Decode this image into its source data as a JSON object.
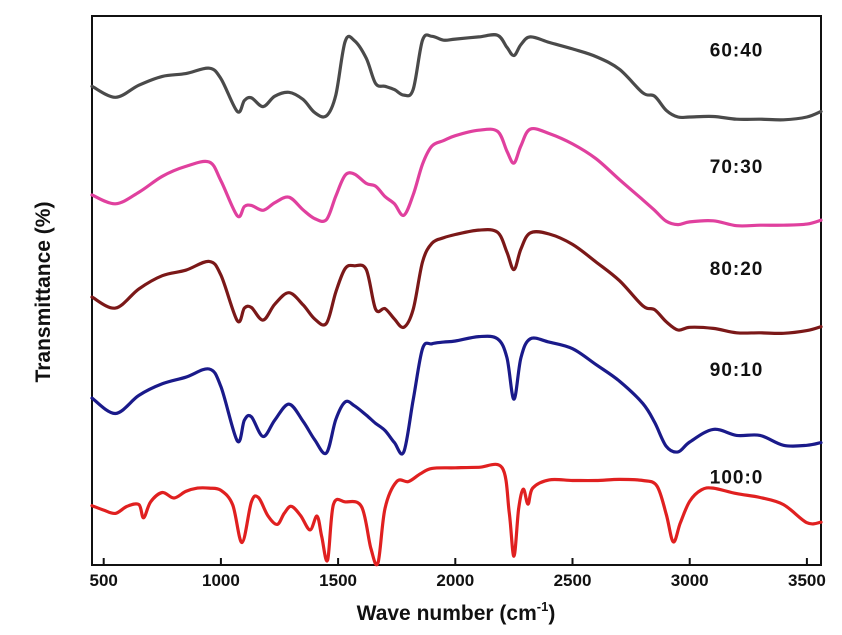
{
  "chart_data": {
    "type": "line",
    "xlabel": "Wave number (cm",
    "xlabel_sup": "-1",
    "xlabel_end": ")",
    "ylabel": "Transmittance (%)",
    "xlim": [
      450,
      3560
    ],
    "ylim": [
      0,
      100
    ],
    "x_ticks": [
      500,
      1000,
      1500,
      2000,
      2500,
      3000,
      3500
    ],
    "x_tick_labels": [
      "500",
      "1000",
      "1500",
      "2000",
      "2500",
      "3000",
      "3500"
    ],
    "grid": false,
    "series": [
      {
        "name": "60:40",
        "color": "#4a4a4a",
        "points": [
          [
            450,
            87.2
          ],
          [
            550,
            85.2
          ],
          [
            650,
            87.4
          ],
          [
            750,
            89.0
          ],
          [
            850,
            89.5
          ],
          [
            950,
            90.5
          ],
          [
            1000,
            88.6
          ],
          [
            1070,
            82.6
          ],
          [
            1100,
            84.6
          ],
          [
            1130,
            85.1
          ],
          [
            1180,
            83.5
          ],
          [
            1230,
            85.4
          ],
          [
            1290,
            86.1
          ],
          [
            1350,
            84.8
          ],
          [
            1400,
            82.4
          ],
          [
            1450,
            81.8
          ],
          [
            1490,
            85.6
          ],
          [
            1530,
            95.4
          ],
          [
            1570,
            95.5
          ],
          [
            1620,
            92.3
          ],
          [
            1660,
            87.7
          ],
          [
            1700,
            87.2
          ],
          [
            1740,
            86.6
          ],
          [
            1780,
            85.6
          ],
          [
            1820,
            86.6
          ],
          [
            1860,
            95.6
          ],
          [
            1900,
            96.3
          ],
          [
            1950,
            95.6
          ],
          [
            2000,
            95.8
          ],
          [
            2100,
            96.2
          ],
          [
            2180,
            96.5
          ],
          [
            2220,
            94.3
          ],
          [
            2250,
            92.8
          ],
          [
            2280,
            94.8
          ],
          [
            2320,
            96.2
          ],
          [
            2400,
            95.2
          ],
          [
            2500,
            94.0
          ],
          [
            2600,
            92.6
          ],
          [
            2700,
            90.3
          ],
          [
            2800,
            86.0
          ],
          [
            2850,
            85.4
          ],
          [
            2900,
            82.8
          ],
          [
            2950,
            81.6
          ],
          [
            3000,
            81.6
          ],
          [
            3100,
            81.7
          ],
          [
            3200,
            81.2
          ],
          [
            3300,
            81.2
          ],
          [
            3400,
            81.1
          ],
          [
            3500,
            81.6
          ],
          [
            3560,
            82.6
          ]
        ]
      },
      {
        "name": "70:30",
        "color": "#e0409e",
        "points": [
          [
            450,
            67.4
          ],
          [
            550,
            65.8
          ],
          [
            650,
            67.9
          ],
          [
            750,
            70.8
          ],
          [
            850,
            72.6
          ],
          [
            950,
            73.4
          ],
          [
            1000,
            70.0
          ],
          [
            1070,
            63.6
          ],
          [
            1100,
            65.3
          ],
          [
            1130,
            65.5
          ],
          [
            1180,
            64.6
          ],
          [
            1230,
            66.0
          ],
          [
            1290,
            67.0
          ],
          [
            1350,
            64.7
          ],
          [
            1400,
            63.1
          ],
          [
            1450,
            62.9
          ],
          [
            1490,
            67.2
          ],
          [
            1530,
            71.0
          ],
          [
            1570,
            71.2
          ],
          [
            1620,
            69.5
          ],
          [
            1660,
            69.0
          ],
          [
            1700,
            67.1
          ],
          [
            1740,
            65.8
          ],
          [
            1780,
            63.7
          ],
          [
            1820,
            67.4
          ],
          [
            1860,
            73.0
          ],
          [
            1900,
            76.3
          ],
          [
            1950,
            77.3
          ],
          [
            2000,
            78.2
          ],
          [
            2100,
            79.2
          ],
          [
            2180,
            79.0
          ],
          [
            2220,
            75.4
          ],
          [
            2250,
            73.2
          ],
          [
            2280,
            76.4
          ],
          [
            2320,
            79.4
          ],
          [
            2400,
            78.6
          ],
          [
            2500,
            76.7
          ],
          [
            2600,
            74.0
          ],
          [
            2700,
            70.2
          ],
          [
            2800,
            66.5
          ],
          [
            2850,
            64.6
          ],
          [
            2900,
            62.6
          ],
          [
            2950,
            62.0
          ],
          [
            3000,
            62.5
          ],
          [
            3100,
            62.7
          ],
          [
            3200,
            61.8
          ],
          [
            3300,
            61.9
          ],
          [
            3400,
            61.9
          ],
          [
            3500,
            62.1
          ],
          [
            3560,
            62.8
          ]
        ]
      },
      {
        "name": "80:20",
        "color": "#7b1818",
        "points": [
          [
            450,
            48.8
          ],
          [
            550,
            46.8
          ],
          [
            650,
            50.3
          ],
          [
            750,
            52.7
          ],
          [
            850,
            53.7
          ],
          [
            950,
            55.3
          ],
          [
            1000,
            52.8
          ],
          [
            1070,
            44.5
          ],
          [
            1100,
            46.8
          ],
          [
            1130,
            46.9
          ],
          [
            1180,
            44.6
          ],
          [
            1230,
            47.5
          ],
          [
            1290,
            49.6
          ],
          [
            1350,
            47.4
          ],
          [
            1400,
            44.8
          ],
          [
            1450,
            44.0
          ],
          [
            1490,
            49.7
          ],
          [
            1530,
            54.0
          ],
          [
            1570,
            54.5
          ],
          [
            1620,
            53.8
          ],
          [
            1660,
            46.6
          ],
          [
            1700,
            46.7
          ],
          [
            1740,
            44.8
          ],
          [
            1780,
            43.3
          ],
          [
            1820,
            46.5
          ],
          [
            1860,
            55.2
          ],
          [
            1900,
            58.6
          ],
          [
            1950,
            59.6
          ],
          [
            2000,
            60.2
          ],
          [
            2100,
            61.0
          ],
          [
            2180,
            60.6
          ],
          [
            2220,
            57.0
          ],
          [
            2250,
            53.8
          ],
          [
            2280,
            57.6
          ],
          [
            2320,
            60.5
          ],
          [
            2400,
            60.3
          ],
          [
            2500,
            58.4
          ],
          [
            2600,
            55.2
          ],
          [
            2700,
            51.8
          ],
          [
            2800,
            47.2
          ],
          [
            2850,
            46.5
          ],
          [
            2900,
            44.3
          ],
          [
            2950,
            42.8
          ],
          [
            3000,
            43.3
          ],
          [
            3100,
            43.1
          ],
          [
            3200,
            42.3
          ],
          [
            3300,
            42.3
          ],
          [
            3400,
            42.2
          ],
          [
            3500,
            42.7
          ],
          [
            3560,
            43.4
          ]
        ]
      },
      {
        "name": "90:10",
        "color": "#1a1a8a",
        "points": [
          [
            450,
            30.4
          ],
          [
            550,
            27.6
          ],
          [
            650,
            30.9
          ],
          [
            750,
            33.0
          ],
          [
            850,
            34.2
          ],
          [
            950,
            35.7
          ],
          [
            1000,
            32.5
          ],
          [
            1070,
            22.6
          ],
          [
            1100,
            26.4
          ],
          [
            1130,
            27.0
          ],
          [
            1180,
            23.4
          ],
          [
            1230,
            26.4
          ],
          [
            1290,
            29.3
          ],
          [
            1350,
            26.2
          ],
          [
            1400,
            22.8
          ],
          [
            1450,
            20.4
          ],
          [
            1490,
            26.5
          ],
          [
            1530,
            29.7
          ],
          [
            1570,
            29.0
          ],
          [
            1620,
            27.3
          ],
          [
            1660,
            25.8
          ],
          [
            1700,
            24.5
          ],
          [
            1740,
            22.3
          ],
          [
            1780,
            20.6
          ],
          [
            1820,
            30.0
          ],
          [
            1860,
            39.4
          ],
          [
            1900,
            40.3
          ],
          [
            1950,
            40.6
          ],
          [
            2000,
            40.8
          ],
          [
            2100,
            41.6
          ],
          [
            2180,
            41.2
          ],
          [
            2220,
            37.8
          ],
          [
            2250,
            30.2
          ],
          [
            2280,
            37.8
          ],
          [
            2320,
            41.2
          ],
          [
            2400,
            40.6
          ],
          [
            2500,
            39.4
          ],
          [
            2600,
            36.5
          ],
          [
            2700,
            33.5
          ],
          [
            2800,
            29.4
          ],
          [
            2850,
            26.0
          ],
          [
            2900,
            21.6
          ],
          [
            2950,
            20.6
          ],
          [
            3000,
            22.4
          ],
          [
            3100,
            24.7
          ],
          [
            3200,
            23.6
          ],
          [
            3300,
            23.6
          ],
          [
            3400,
            21.8
          ],
          [
            3500,
            21.8
          ],
          [
            3560,
            22.3
          ]
        ]
      },
      {
        "name": "100:0",
        "color": "#e02020",
        "points": [
          [
            450,
            10.8
          ],
          [
            500,
            10.0
          ],
          [
            550,
            9.4
          ],
          [
            600,
            10.7
          ],
          [
            650,
            11.0
          ],
          [
            670,
            8.6
          ],
          [
            700,
            11.5
          ],
          [
            750,
            13.2
          ],
          [
            800,
            12.2
          ],
          [
            850,
            13.4
          ],
          [
            900,
            14.0
          ],
          [
            950,
            14.0
          ],
          [
            1000,
            13.6
          ],
          [
            1050,
            11.0
          ],
          [
            1090,
            4.1
          ],
          [
            1130,
            11.5
          ],
          [
            1160,
            12.3
          ],
          [
            1200,
            9.0
          ],
          [
            1240,
            7.4
          ],
          [
            1270,
            9.4
          ],
          [
            1300,
            10.7
          ],
          [
            1340,
            9.0
          ],
          [
            1380,
            6.4
          ],
          [
            1410,
            8.9
          ],
          [
            1430,
            5.2
          ],
          [
            1455,
            0.9
          ],
          [
            1480,
            11.0
          ],
          [
            1530,
            11.5
          ],
          [
            1600,
            10.6
          ],
          [
            1640,
            3.0
          ],
          [
            1670,
            0.4
          ],
          [
            1700,
            10.3
          ],
          [
            1750,
            15.2
          ],
          [
            1800,
            15.2
          ],
          [
            1850,
            16.6
          ],
          [
            1900,
            17.6
          ],
          [
            2000,
            17.7
          ],
          [
            2100,
            17.8
          ],
          [
            2200,
            17.7
          ],
          [
            2230,
            9.6
          ],
          [
            2250,
            1.6
          ],
          [
            2270,
            10.2
          ],
          [
            2290,
            13.8
          ],
          [
            2310,
            11.1
          ],
          [
            2330,
            14.0
          ],
          [
            2400,
            15.5
          ],
          [
            2500,
            15.4
          ],
          [
            2600,
            15.4
          ],
          [
            2700,
            15.6
          ],
          [
            2800,
            15.4
          ],
          [
            2860,
            14.4
          ],
          [
            2900,
            9.2
          ],
          [
            2930,
            4.2
          ],
          [
            2960,
            7.7
          ],
          [
            3000,
            11.6
          ],
          [
            3050,
            13.7
          ],
          [
            3100,
            14.0
          ],
          [
            3200,
            13.0
          ],
          [
            3300,
            12.3
          ],
          [
            3400,
            11.0
          ],
          [
            3500,
            7.7
          ],
          [
            3560,
            7.8
          ]
        ]
      }
    ]
  }
}
